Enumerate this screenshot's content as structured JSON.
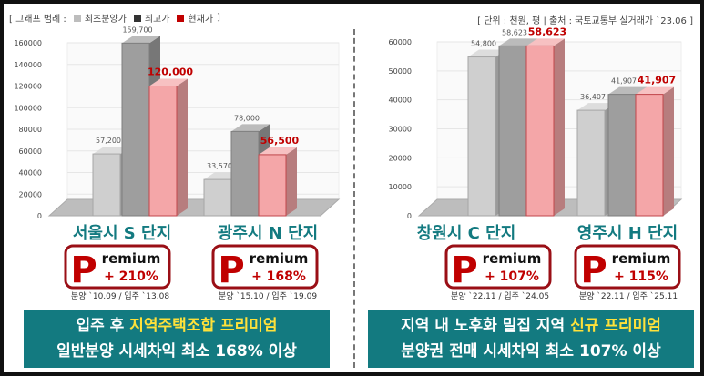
{
  "legend": {
    "prefix": "[ 그래프 범례 :",
    "items": [
      "최초분양가",
      "최고가",
      "현재가"
    ],
    "suffix": "]"
  },
  "source_note": "[ 단위 : 천원, 평 | 출처 : 국토교통부 실거래가 `23.06 ]",
  "colors": {
    "initial": "#cfcfcf",
    "high": "#9e9e9e",
    "current": "#f4a6a8",
    "accent": "#c00000",
    "teal": "#137a80"
  },
  "chart_data": [
    {
      "type": "bar",
      "series": [
        "최초분양가",
        "최고가",
        "현재가"
      ],
      "ylim": [
        0,
        160000
      ],
      "yticks": [
        "0",
        "20000",
        "40000",
        "60000",
        "80000",
        "100000",
        "120000",
        "140000",
        "160000"
      ],
      "groups": [
        {
          "name": "서울시 S 단지",
          "values": [
            57200,
            159700,
            120000
          ],
          "labels": [
            "57,200",
            "159,700",
            "120,000"
          ],
          "premium": "+ 210%",
          "dates": "분양 `10.09 / 입주 `13.08"
        },
        {
          "name": "광주시 N 단지",
          "values": [
            33570,
            78000,
            56500
          ],
          "labels": [
            "33,570",
            "78,000",
            "56,500"
          ],
          "premium": "+ 168%",
          "dates": "분양 `15.10 / 입주 `19.09"
        }
      ]
    },
    {
      "type": "bar",
      "series": [
        "최초분양가",
        "최고가",
        "현재가"
      ],
      "ylim": [
        0,
        60000
      ],
      "yticks": [
        "0",
        "10000",
        "20000",
        "30000",
        "40000",
        "50000",
        "60000"
      ],
      "groups": [
        {
          "name": "창원시 C 단지",
          "values": [
            54800,
            58623,
            58623
          ],
          "labels": [
            "54,800",
            "58,623",
            "58,623"
          ],
          "premium": "+ 107%",
          "dates": "분양 `22.11 / 입주 `24.05"
        },
        {
          "name": "영주시 H 단지",
          "values": [
            36407,
            41907,
            41907
          ],
          "labels": [
            "36,407",
            "41,907",
            "41,907"
          ],
          "premium": "+ 115%",
          "dates": "분양 `22.11 / 입주 `25.11"
        }
      ]
    }
  ],
  "premium_badge": {
    "letter": "P",
    "word": "remium"
  },
  "banners": [
    {
      "line1_a": "입주 후 ",
      "line1_hl": "지역주택조합 프리미엄",
      "line2": "일반분양 시세차익 최소 168% 이상"
    },
    {
      "line1_a": "지역 내 노후화 밀집 지역 ",
      "line1_hl": "신규 프리미엄",
      "line2": "분양권 전매 시세차익 최소 107% 이상"
    }
  ]
}
